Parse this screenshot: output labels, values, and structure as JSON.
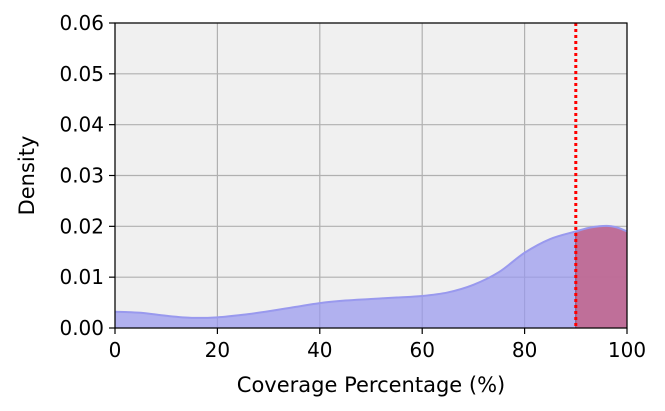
{
  "chart_data": {
    "type": "area",
    "title": "",
    "xlabel": "Coverage Percentage (%)",
    "ylabel": "Density",
    "xlim": [
      0,
      100
    ],
    "ylim": [
      0,
      0.06
    ],
    "xticks": [
      0,
      20,
      40,
      60,
      80,
      100
    ],
    "xtick_labels": [
      "0",
      "20",
      "40",
      "60",
      "80",
      "100"
    ],
    "yticks": [
      0,
      0.01,
      0.02,
      0.03,
      0.04,
      0.05,
      0.06
    ],
    "ytick_labels": [
      "0.00",
      "0.01",
      "0.02",
      "0.03",
      "0.04",
      "0.05",
      "0.06"
    ],
    "grid": true,
    "legend": "none",
    "series": [
      {
        "x": [
          0,
          5,
          10,
          15,
          20,
          25,
          30,
          35,
          40,
          45,
          50,
          55,
          60,
          65,
          70,
          75,
          80,
          85,
          90,
          93,
          96,
          98,
          100
        ],
        "y": [
          0.0032,
          0.003,
          0.0024,
          0.002,
          0.0021,
          0.0026,
          0.0033,
          0.0041,
          0.0049,
          0.0054,
          0.0057,
          0.006,
          0.0063,
          0.007,
          0.0085,
          0.011,
          0.0148,
          0.0175,
          0.019,
          0.0198,
          0.0201,
          0.0198,
          0.019
        ],
        "color": "#9999ee"
      }
    ],
    "threshold": {
      "x": 90,
      "color": "#ff0000",
      "style": "dotted"
    },
    "highlight_region": {
      "from": 90,
      "to": 100,
      "color": "#c06b94"
    },
    "background_color": "#f0f0f0"
  }
}
